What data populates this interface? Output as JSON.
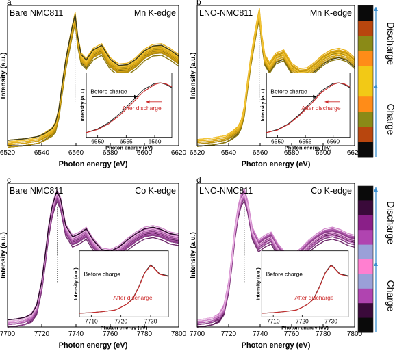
{
  "figure": {
    "colors": {
      "mn_trace": [
        "#3a3a1a",
        "#6b5d18",
        "#8c7a12",
        "#b8900e",
        "#d9a514",
        "#e9b41d",
        "#f3c63a"
      ],
      "co_trace": [
        "#2a0a2a",
        "#4b1549",
        "#6e2a6b",
        "#8e3f8c",
        "#b35fb0",
        "#d28acc",
        "#eab7e3"
      ],
      "inset_before": "#2a2a2a",
      "inset_after": "#cc2a2a",
      "arrow_blue": "#3a8fd0",
      "mn_bar": [
        "#0a0a0a",
        "#b8460e",
        "#8a8a17",
        "#ff8c18",
        "#f2c916",
        "#f2c916",
        "#ff8c18",
        "#8a8a17",
        "#b8460e",
        "#0a0a0a"
      ],
      "co_bar": [
        "#0a0a0a",
        "#3a0a3a",
        "#8a1f88",
        "#b044b0",
        "#9aa0d8",
        "#ff7fd0",
        "#9aa0d8",
        "#b044b0",
        "#3a0a3a",
        "#0a0a0a"
      ]
    },
    "side_bars": {
      "top": {
        "label_upper": "Discharge",
        "label_lower": "Charge"
      },
      "bottom": {
        "label_upper": "Discharge",
        "label_lower": "Charge"
      }
    }
  },
  "chart_data": [
    {
      "panel_letter": "a",
      "type": "line",
      "sample": "Bare NMC811",
      "edge": "Mn K-edge",
      "xlabel": "Photon energy (eV)",
      "ylabel": "Intensity (a.u.)",
      "xlim": [
        6520,
        6620
      ],
      "ylim": [
        0,
        1.8
      ],
      "xticks": [
        6520,
        6540,
        6560,
        6580,
        6600,
        6620
      ],
      "marker_x": 6559.5,
      "x": [
        6520,
        6530,
        6538,
        6542,
        6546,
        6548,
        6550,
        6552,
        6554,
        6556,
        6558,
        6559.5,
        6561,
        6563,
        6566,
        6570,
        6575,
        6580,
        6585,
        6590,
        6595,
        6600,
        6605,
        6610,
        6615,
        6620
      ],
      "series": [
        {
          "values": [
            0.03,
            0.05,
            0.08,
            0.12,
            0.18,
            0.24,
            0.42,
            0.75,
            1.05,
            1.28,
            1.5,
            1.65,
            1.35,
            1.12,
            1.05,
            1.18,
            1.24,
            1.06,
            0.98,
            0.99,
            1.06,
            1.17,
            1.23,
            1.24,
            1.18,
            1.1
          ]
        },
        {
          "values": [
            0.03,
            0.05,
            0.08,
            0.13,
            0.19,
            0.26,
            0.44,
            0.77,
            1.07,
            1.3,
            1.52,
            1.67,
            1.38,
            1.15,
            1.08,
            1.21,
            1.27,
            1.09,
            1.01,
            1.02,
            1.09,
            1.2,
            1.26,
            1.27,
            1.21,
            1.13
          ]
        },
        {
          "values": [
            0.03,
            0.05,
            0.08,
            0.12,
            0.17,
            0.22,
            0.4,
            0.72,
            1.02,
            1.25,
            1.47,
            1.62,
            1.32,
            1.1,
            1.03,
            1.15,
            1.21,
            1.03,
            0.95,
            0.96,
            1.03,
            1.14,
            1.2,
            1.21,
            1.15,
            1.07
          ]
        },
        {
          "values": [
            0.03,
            0.05,
            0.08,
            0.12,
            0.18,
            0.25,
            0.43,
            0.76,
            1.06,
            1.29,
            1.51,
            1.64,
            1.36,
            1.13,
            1.06,
            1.19,
            1.25,
            1.07,
            0.99,
            1.0,
            1.07,
            1.18,
            1.24,
            1.25,
            1.19,
            1.11
          ]
        }
      ],
      "inset": {
        "xlabel": "Photon energy (eV)",
        "ylabel": "Intensity (a.u.)",
        "xlim": [
          6548,
          6563
        ],
        "xticks": [
          6550,
          6555,
          6560
        ],
        "labels": {
          "before": "Before charge",
          "after": "After discharge"
        },
        "x": [
          6548,
          6550,
          6552,
          6554,
          6556,
          6558,
          6560,
          6561,
          6562,
          6563
        ],
        "before": [
          0.05,
          0.12,
          0.24,
          0.42,
          0.64,
          0.86,
          0.98,
          0.99,
          0.96,
          0.9
        ],
        "after": [
          0.05,
          0.11,
          0.22,
          0.39,
          0.6,
          0.82,
          0.96,
          0.99,
          0.97,
          0.92
        ]
      }
    },
    {
      "panel_letter": "b",
      "type": "line",
      "sample": "LNO-NMC811",
      "edge": "Mn K-edge",
      "xlabel": "Photon energy (eV)",
      "ylabel": "Intensity (a.u.)",
      "xlim": [
        6520,
        6620
      ],
      "ylim": [
        0,
        1.8
      ],
      "xticks": [
        6520,
        6540,
        6560,
        6580,
        6600,
        6620
      ],
      "marker_x": 6559.5,
      "x": [
        6520,
        6530,
        6538,
        6542,
        6546,
        6548,
        6550,
        6552,
        6554,
        6556,
        6558,
        6559.5,
        6561,
        6563,
        6566,
        6570,
        6575,
        6580,
        6585,
        6590,
        6595,
        6600,
        6605,
        6610,
        6615,
        6620
      ],
      "series": [
        {
          "values": [
            0.04,
            0.06,
            0.09,
            0.13,
            0.2,
            0.28,
            0.45,
            0.78,
            1.08,
            1.32,
            1.55,
            1.7,
            1.36,
            1.1,
            1.0,
            1.12,
            1.16,
            0.99,
            0.92,
            0.93,
            1.01,
            1.1,
            1.16,
            1.18,
            1.15,
            1.06
          ]
        },
        {
          "values": [
            0.04,
            0.06,
            0.09,
            0.14,
            0.21,
            0.29,
            0.47,
            0.8,
            1.1,
            1.34,
            1.57,
            1.72,
            1.39,
            1.13,
            1.03,
            1.15,
            1.19,
            1.02,
            0.95,
            0.96,
            1.04,
            1.13,
            1.19,
            1.21,
            1.18,
            1.09
          ]
        },
        {
          "values": [
            0.04,
            0.06,
            0.09,
            0.13,
            0.19,
            0.27,
            0.43,
            0.76,
            1.06,
            1.3,
            1.53,
            1.68,
            1.34,
            1.08,
            0.98,
            1.1,
            1.14,
            0.97,
            0.9,
            0.91,
            0.99,
            1.08,
            1.14,
            1.16,
            1.13,
            1.04
          ]
        }
      ],
      "inset": {
        "xlabel": "Photon energy (eV)",
        "ylabel": "Intensity (a.u.)",
        "xlim": [
          6548,
          6563
        ],
        "xticks": [
          6550,
          6555,
          6560
        ],
        "labels": {
          "before": "Before charge",
          "after": "After discharge"
        },
        "x": [
          6548,
          6550,
          6552,
          6554,
          6556,
          6558,
          6560,
          6561,
          6562,
          6563
        ],
        "before": [
          0.05,
          0.11,
          0.22,
          0.4,
          0.62,
          0.85,
          0.98,
          0.99,
          0.96,
          0.9
        ],
        "after": [
          0.05,
          0.1,
          0.21,
          0.38,
          0.59,
          0.82,
          0.96,
          0.99,
          0.97,
          0.92
        ]
      }
    },
    {
      "panel_letter": "c",
      "type": "line",
      "sample": "Bare NMC811",
      "edge": "Co K-edge",
      "xlabel": "Photon energy (eV)",
      "ylabel": "Intensity (a.u.)",
      "xlim": [
        7700,
        7800
      ],
      "ylim": [
        0,
        1.8
      ],
      "xticks": [
        7700,
        7720,
        7740,
        7760,
        7780,
        7800
      ],
      "marker_x": 7729,
      "x": [
        7700,
        7705,
        7710,
        7714,
        7717,
        7720,
        7722,
        7724,
        7726,
        7728,
        7729,
        7731,
        7734,
        7738,
        7742,
        7746,
        7750,
        7755,
        7760,
        7765,
        7770,
        7775,
        7780,
        7785,
        7790,
        7795,
        7800
      ],
      "series": [
        {
          "values": [
            0.05,
            0.06,
            0.08,
            0.12,
            0.22,
            0.52,
            0.85,
            1.2,
            1.45,
            1.6,
            1.65,
            1.55,
            1.22,
            1.08,
            1.12,
            1.18,
            1.04,
            0.92,
            0.9,
            0.95,
            1.04,
            1.12,
            1.18,
            1.2,
            1.17,
            1.12,
            1.1
          ]
        },
        {
          "values": [
            0.05,
            0.06,
            0.08,
            0.13,
            0.24,
            0.55,
            0.88,
            1.23,
            1.48,
            1.63,
            1.68,
            1.58,
            1.25,
            1.11,
            1.15,
            1.21,
            1.07,
            0.95,
            0.93,
            0.98,
            1.07,
            1.15,
            1.21,
            1.23,
            1.2,
            1.15,
            1.13
          ]
        },
        {
          "values": [
            0.05,
            0.06,
            0.08,
            0.11,
            0.2,
            0.5,
            0.82,
            1.17,
            1.42,
            1.57,
            1.62,
            1.52,
            1.19,
            1.05,
            1.09,
            1.15,
            1.01,
            0.89,
            0.87,
            0.92,
            1.01,
            1.09,
            1.15,
            1.17,
            1.14,
            1.09,
            1.07
          ]
        },
        {
          "values": [
            0.05,
            0.06,
            0.08,
            0.12,
            0.23,
            0.53,
            0.86,
            1.21,
            1.46,
            1.61,
            1.66,
            1.56,
            1.23,
            1.09,
            1.13,
            1.19,
            1.05,
            0.93,
            0.91,
            0.96,
            1.05,
            1.13,
            1.19,
            1.21,
            1.18,
            1.13,
            1.11
          ]
        }
      ],
      "inset": {
        "xlabel": "Photon energy (eV)",
        "ylabel": "Intensity (a.u.)",
        "xlim": [
          7706,
          7736
        ],
        "xticks": [
          7710,
          7720,
          7730
        ],
        "labels": {
          "before": "Before charge",
          "after": "After discharge"
        },
        "x": [
          7706,
          7710,
          7714,
          7718,
          7720,
          7722,
          7724,
          7726,
          7728,
          7730,
          7731,
          7733,
          7736
        ],
        "before": [
          0.03,
          0.04,
          0.06,
          0.09,
          0.14,
          0.2,
          0.3,
          0.52,
          0.78,
          0.92,
          0.88,
          0.76,
          0.72
        ],
        "after": [
          0.03,
          0.04,
          0.06,
          0.09,
          0.14,
          0.2,
          0.29,
          0.51,
          0.77,
          0.91,
          0.87,
          0.75,
          0.71
        ]
      }
    },
    {
      "panel_letter": "d",
      "type": "line",
      "sample": "LNO-NMC811",
      "edge": "Co K-edge",
      "xlabel": "Photon energy (eV)",
      "ylabel": "Intensity (a.u.)",
      "xlim": [
        7700,
        7800
      ],
      "ylim": [
        0,
        1.8
      ],
      "xticks": [
        7700,
        7720,
        7740,
        7760,
        7780,
        7800
      ],
      "marker_x": 7730,
      "x": [
        7700,
        7705,
        7710,
        7714,
        7717,
        7720,
        7722,
        7724,
        7726,
        7728,
        7730,
        7732,
        7735,
        7739,
        7743,
        7747,
        7751,
        7756,
        7761,
        7766,
        7771,
        7776,
        7781,
        7786,
        7791,
        7796,
        7800
      ],
      "series": [
        {
          "values": [
            0.05,
            0.06,
            0.08,
            0.12,
            0.22,
            0.5,
            0.82,
            1.18,
            1.44,
            1.6,
            1.66,
            1.52,
            1.18,
            1.02,
            1.08,
            1.12,
            0.98,
            0.86,
            0.84,
            0.92,
            1.02,
            1.1,
            1.16,
            1.18,
            1.15,
            1.1,
            1.08
          ]
        },
        {
          "values": [
            0.05,
            0.06,
            0.08,
            0.13,
            0.24,
            0.53,
            0.85,
            1.21,
            1.47,
            1.63,
            1.69,
            1.55,
            1.21,
            1.05,
            1.11,
            1.15,
            1.01,
            0.89,
            0.87,
            0.95,
            1.05,
            1.13,
            1.19,
            1.21,
            1.18,
            1.13,
            1.11
          ]
        },
        {
          "values": [
            0.05,
            0.06,
            0.08,
            0.11,
            0.2,
            0.48,
            0.79,
            1.15,
            1.41,
            1.57,
            1.63,
            1.49,
            1.15,
            0.99,
            1.05,
            1.09,
            0.95,
            0.83,
            0.81,
            0.89,
            0.99,
            1.07,
            1.13,
            1.15,
            1.12,
            1.07,
            1.05
          ]
        }
      ],
      "inset": {
        "xlabel": "Photon energy (eV)",
        "ylabel": "Intensity (a.u.)",
        "xlim": [
          7706,
          7736
        ],
        "xticks": [
          7710,
          7720,
          7730
        ],
        "labels": {
          "before": "Before charge",
          "after": "After discharge"
        },
        "x": [
          7706,
          7710,
          7714,
          7718,
          7720,
          7722,
          7724,
          7726,
          7728,
          7730,
          7731,
          7733,
          7736
        ],
        "before": [
          0.03,
          0.04,
          0.06,
          0.09,
          0.14,
          0.2,
          0.3,
          0.52,
          0.78,
          0.92,
          0.88,
          0.76,
          0.72
        ],
        "after": [
          0.03,
          0.04,
          0.06,
          0.09,
          0.14,
          0.2,
          0.29,
          0.51,
          0.77,
          0.91,
          0.87,
          0.75,
          0.71
        ]
      }
    }
  ]
}
